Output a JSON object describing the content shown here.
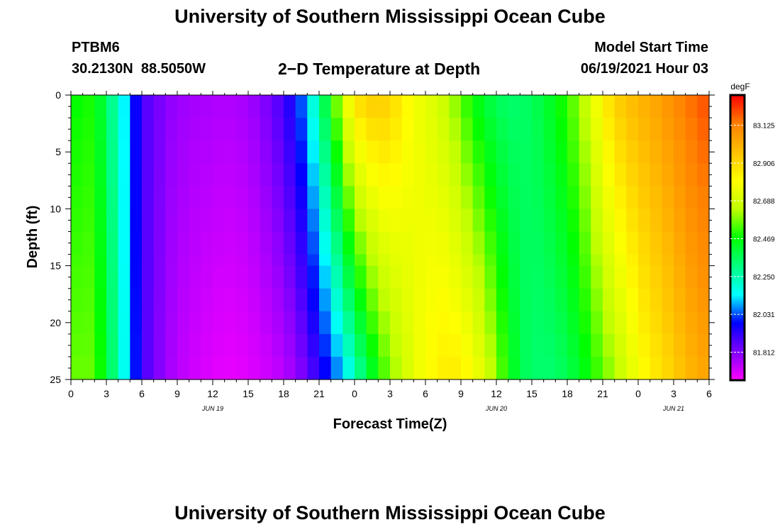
{
  "header": {
    "title": "University of Southern Mississippi Ocean Cube",
    "station_id": "PTBM6",
    "location": "30.2130N  88.5050W",
    "plot_title": "2−D Temperature at Depth",
    "model_start_label": "Model Start Time",
    "model_start_value": "06/19/2021 Hour 03"
  },
  "footer": {
    "title": "University of Southern Mississippi Ocean Cube"
  },
  "chart_data": {
    "type": "heatmap",
    "xlabel": "Forecast Time(Z)",
    "ylabel": "Depth (ft)",
    "x_tick_labels": [
      "0",
      "3",
      "6",
      "9",
      "12",
      "15",
      "18",
      "21",
      "0",
      "3",
      "6",
      "9",
      "12",
      "15",
      "18",
      "21",
      "0",
      "3",
      "6"
    ],
    "date_labels": [
      "JUN 19",
      "JUN 20",
      "JUN 21"
    ],
    "date_label_ticks": [
      4,
      12,
      17
    ],
    "x_range_hours": [
      0,
      54
    ],
    "y_ticks": [
      0,
      5,
      10,
      15,
      20,
      25
    ],
    "ylim": [
      0,
      25
    ],
    "depth_levels_ft": [
      0,
      2,
      4,
      6,
      8,
      10,
      12,
      14,
      15,
      17,
      19,
      21,
      23,
      25
    ],
    "colorbar": {
      "units": "degF",
      "tick_labels": [
        "83.125",
        "82.906",
        "82.688",
        "82.469",
        "82.250",
        "82.031",
        "81.812"
      ],
      "range": [
        81.65,
        83.3
      ],
      "colors": [
        "#ff00ff",
        "#8000ff",
        "#0000ff",
        "#00ffff",
        "#00ff80",
        "#00ff00",
        "#c0ff00",
        "#ffff00",
        "#ffc000",
        "#ff8000",
        "#ff0000"
      ]
    },
    "surface_temperature_by_hour": [
      82.45,
      82.5,
      82.48,
      82.36,
      82.22,
      82.06,
      81.88,
      81.85,
      81.8,
      81.78,
      81.77,
      81.76,
      81.76,
      81.75,
      81.76,
      81.77,
      81.8,
      81.84,
      81.9,
      81.98,
      82.1,
      82.3,
      82.48,
      82.7,
      82.88,
      82.93,
      82.95,
      82.92,
      82.85,
      82.78,
      82.74,
      82.7,
      82.64,
      82.55,
      82.47,
      82.41,
      82.36,
      82.34,
      82.34,
      82.36,
      82.4,
      82.46,
      82.52,
      82.6,
      82.72,
      82.84,
      82.92,
      82.97,
      83.0,
      83.03,
      83.06,
      83.1,
      83.14,
      83.18,
      83.2
    ],
    "bottom_temperature_by_hour": [
      82.55,
      82.58,
      82.55,
      82.42,
      82.25,
      82.08,
      81.9,
      81.83,
      81.78,
      81.74,
      81.72,
      81.7,
      81.69,
      81.68,
      81.68,
      81.69,
      81.7,
      81.72,
      81.74,
      81.78,
      81.84,
      81.92,
      82.0,
      82.1,
      82.22,
      82.36,
      82.48,
      82.58,
      82.66,
      82.74,
      82.8,
      82.84,
      82.86,
      82.85,
      82.8,
      82.72,
      82.6,
      82.48,
      82.38,
      82.34,
      82.33,
      82.34,
      82.37,
      82.42,
      82.48,
      82.55,
      82.62,
      82.7,
      82.78,
      82.84,
      82.88,
      82.93,
      82.98,
      83.02,
      83.04
    ]
  }
}
